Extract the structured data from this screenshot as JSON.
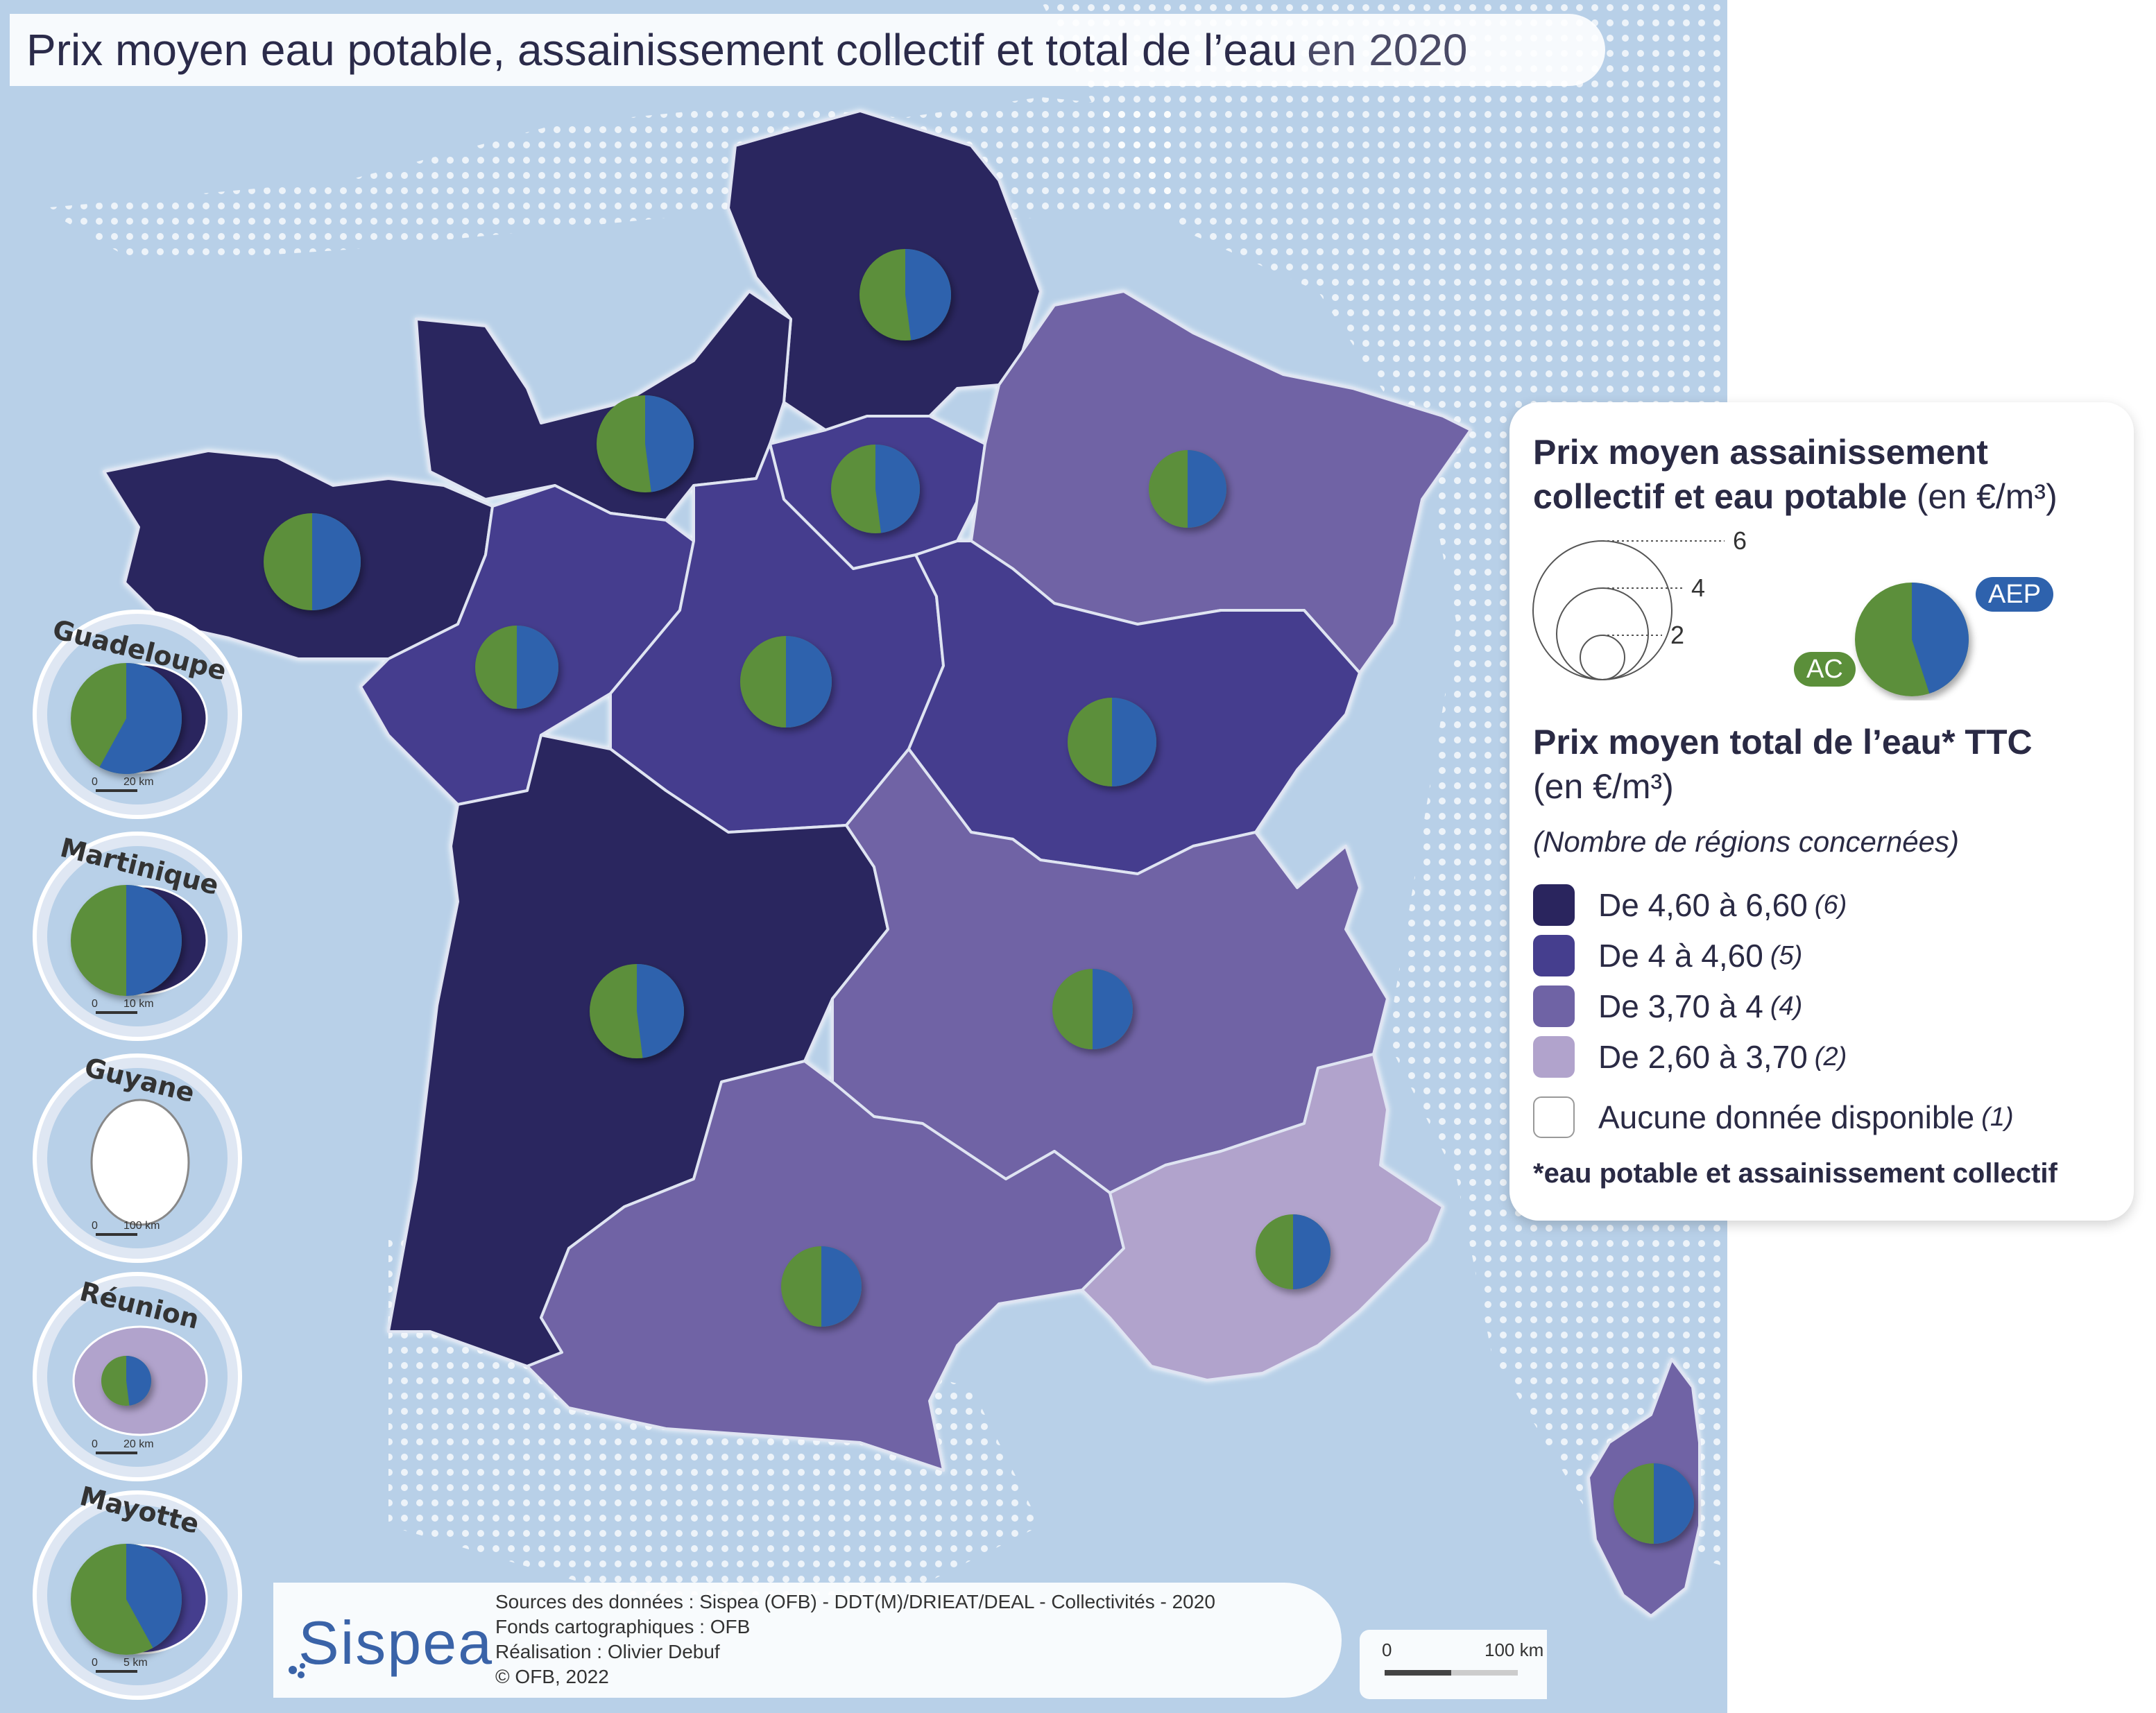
{
  "title": {
    "main": "Prix moyen eau potable, assainissement collectif et total de l’eau",
    "year": "en 2020"
  },
  "colors": {
    "sea": "#b8d0e8",
    "land_dots": "#ffffff",
    "class_1": "#2a255e",
    "class_2": "#453e8e",
    "class_3": "#6f63a5",
    "class_4": "#b1a3cc",
    "class_none": "#ffffff",
    "ac": "#5b8f3a",
    "aep": "#2e62ad"
  },
  "legend": {
    "size_title_line1": "Prix moyen assainissement",
    "size_title_line2": "collectif et eau potable",
    "size_unit": "(en €/m³)",
    "size_values": [
      "6",
      "4",
      "2"
    ],
    "aep_label": "AEP",
    "ac_label": "AC",
    "choro_title_line1": "Prix moyen total de l’eau* TTC",
    "choro_title_line2": "(en €/m³)",
    "count_note": "(Nombre de régions concernées)",
    "classes": [
      {
        "label": "De 4,60 à 6,60",
        "count": "(6)",
        "color": "#2a255e"
      },
      {
        "label": "De 4 à 4,60",
        "count": "(5)",
        "color": "#453e8e"
      },
      {
        "label": "De 3,70 à 4",
        "count": "(4)",
        "color": "#6f63a5"
      },
      {
        "label": "De 2,60 à 3,70",
        "count": "(2)",
        "color": "#b1a3cc"
      },
      {
        "label": "Aucune donnée disponible",
        "count": "(1)",
        "color": "#ffffff"
      }
    ],
    "footnote": "*eau potable et assainissement collectif"
  },
  "overseas": [
    {
      "name": "Guadeloupe",
      "scale": "20 km",
      "class_color": "#2a255e"
    },
    {
      "name": "Martinique",
      "scale": "10 km",
      "class_color": "#2a255e"
    },
    {
      "name": "Guyane",
      "scale": "100 km",
      "class_color": "#ffffff"
    },
    {
      "name": "Réunion",
      "scale": "20 km",
      "class_color": "#b1a3cc"
    },
    {
      "name": "Mayotte",
      "scale": "5 km",
      "class_color": "#453e8e"
    }
  ],
  "overseas_scale_zero": "0",
  "credits": {
    "logo": "Sispea",
    "line1": "Sources des données : Sispea (OFB) - DDT(M)/DRIEAT/DEAL - Collectivités - 2020",
    "line2": "Fonds cartographiques : OFB",
    "line3": "Réalisation : Olivier Debuf",
    "line4": "© OFB, 2022"
  },
  "scale_bar": {
    "start": "0",
    "end": "100 km"
  },
  "regions": [
    {
      "id": "hauts-de-france",
      "class": 1,
      "ac_share": 0.52
    },
    {
      "id": "normandie",
      "class": 1,
      "ac_share": 0.52
    },
    {
      "id": "bretagne",
      "class": 1,
      "ac_share": 0.5
    },
    {
      "id": "ile-de-france",
      "class": 2,
      "ac_share": 0.52
    },
    {
      "id": "grand-est",
      "class": 3,
      "ac_share": 0.5
    },
    {
      "id": "pays-de-la-loire",
      "class": 2,
      "ac_share": 0.5
    },
    {
      "id": "centre-val-de-loire",
      "class": 2,
      "ac_share": 0.5
    },
    {
      "id": "bourgogne-franche-comte",
      "class": 2,
      "ac_share": 0.5
    },
    {
      "id": "nouvelle-aquitaine",
      "class": 1,
      "ac_share": 0.52
    },
    {
      "id": "auvergne-rhone-alpes",
      "class": 3,
      "ac_share": 0.5
    },
    {
      "id": "occitanie",
      "class": 3,
      "ac_share": 0.5
    },
    {
      "id": "provence-alpes-cote-dazur",
      "class": 4,
      "ac_share": 0.5
    },
    {
      "id": "corse",
      "class": 3,
      "ac_share": 0.5
    },
    {
      "id": "guadeloupe",
      "class": 1,
      "ac_share": 0.42
    },
    {
      "id": "martinique",
      "class": 1,
      "ac_share": 0.5
    },
    {
      "id": "reunion",
      "class": 4,
      "ac_share": 0.52
    },
    {
      "id": "mayotte",
      "class": 2,
      "ac_share": 0.58
    }
  ]
}
